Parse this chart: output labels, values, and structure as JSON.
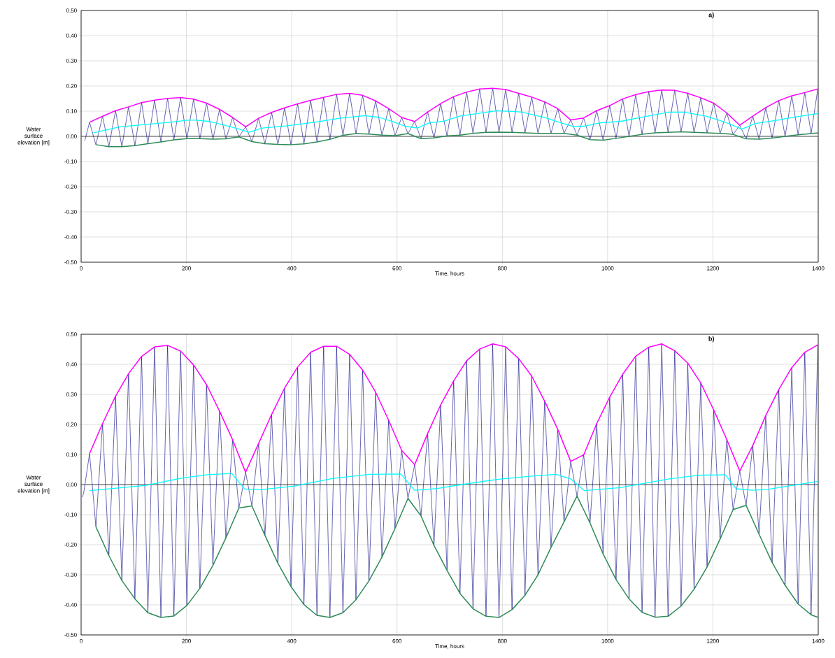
{
  "chart_data": [
    {
      "type": "line",
      "title": "a)",
      "xlabel": "Time, hours",
      "ylabel": "Water surface elevation [m]",
      "xlim": [
        0,
        1400
      ],
      "ylim": [
        -0.5,
        0.5
      ],
      "xticks": [
        0,
        200,
        400,
        600,
        800,
        1000,
        1200,
        1400
      ],
      "yticks": [
        {
          "value": -0.5,
          "label": "-0.50"
        },
        {
          "value": -0.4,
          "label": "-0.40"
        },
        {
          "value": -0.3,
          "label": "-0.30"
        },
        {
          "value": -0.2,
          "label": "-0.20"
        },
        {
          "value": -0.1,
          "label": "-0.10"
        },
        {
          "value": 0,
          "label": "0.00"
        },
        {
          "value": 0.1,
          "label": "0.10"
        },
        {
          "value": 0.2,
          "label": "0.20"
        },
        {
          "value": 0.3,
          "label": "0.30"
        },
        {
          "value": 0.4,
          "label": "0.40"
        },
        {
          "value": 0.5,
          "label": "0.50"
        }
      ],
      "grid": true,
      "marker": "none",
      "ref_lines": [
        {
          "axis": "y",
          "value": 0,
          "color": "#404040"
        }
      ],
      "series": [
        {
          "color": "#000080",
          "x": [
            7,
            16,
            28,
            40.7,
            52.7,
            65.4,
            77.4,
            90.1,
            102.1,
            114.8,
            126.8,
            139.5,
            151.5,
            164.2,
            176.2,
            188.9,
            200.9,
            213.6,
            225.6,
            238.3,
            250.3,
            263,
            275,
            287.7,
            299.7,
            312.4,
            324.4,
            337.1,
            349.1,
            361.8,
            373.8,
            386.5,
            398.5,
            411.2,
            423.2,
            435.9,
            447.9,
            460.6,
            472.6,
            485.3,
            497.3,
            510,
            522,
            534.7,
            546.7,
            559.4,
            571.4,
            584.1,
            596.1,
            608.8,
            620.8,
            633.5,
            645.5,
            658.2,
            670.2,
            682.9,
            694.9,
            707.6,
            719.6,
            732.3,
            744.3,
            757,
            769,
            781.7,
            793.7,
            806.4,
            818.4,
            831.1,
            843.1,
            855.8,
            867.8,
            880.5,
            892.5,
            905.2,
            917.2,
            929.9,
            941.9,
            954.6,
            966.6,
            979.3,
            991.3,
            1004,
            1016,
            1028.7,
            1040.7,
            1053.4,
            1065.4,
            1078.1,
            1090.1,
            1102.8,
            1114.8,
            1127.5,
            1139.5,
            1152.2,
            1164.2,
            1176.9,
            1188.9,
            1201.6,
            1213.6,
            1226.3,
            1238.3,
            1251,
            1263,
            1275.7,
            1287.7,
            1300.4,
            1312.4,
            1325.1,
            1337.1,
            1349.8,
            1361.8,
            1374.5,
            1386.5,
            1399.2
          ],
          "values": [
            -0.017,
            0.056,
            -0.033,
            0.08,
            -0.041,
            0.102,
            -0.041,
            0.117,
            -0.037,
            0.134,
            -0.029,
            0.144,
            -0.022,
            0.151,
            -0.014,
            0.154,
            -0.009,
            0.148,
            -0.009,
            0.132,
            -0.011,
            0.107,
            -0.01,
            0.075,
            -0.002,
            0.038,
            -0.021,
            0.072,
            -0.029,
            0.095,
            -0.032,
            0.113,
            -0.033,
            0.129,
            -0.03,
            0.143,
            -0.022,
            0.155,
            -0.012,
            0.167,
            0.004,
            0.171,
            0.011,
            0.163,
            0.009,
            0.141,
            0.005,
            0.11,
            0.003,
            0.075,
            0.011,
            0.059,
            -0.009,
            0.097,
            -0.006,
            0.13,
            0.002,
            0.158,
            0.005,
            0.176,
            0.012,
            0.188,
            0.016,
            0.191,
            0.017,
            0.186,
            0.016,
            0.171,
            0.014,
            0.156,
            0.012,
            0.137,
            0.012,
            0.11,
            0.012,
            0.065,
            0.005,
            0.073,
            -0.013,
            0.102,
            -0.015,
            0.122,
            -0.008,
            0.149,
            0.0,
            0.166,
            0.008,
            0.178,
            0.014,
            0.184,
            0.016,
            0.183,
            0.018,
            0.171,
            0.016,
            0.153,
            0.014,
            0.132,
            0.012,
            0.093,
            0.008,
            0.044,
            -0.01,
            0.08,
            -0.011,
            0.114,
            -0.007,
            0.142,
            0.0,
            0.161,
            0.006,
            0.174,
            0.011,
            0.188
          ]
        },
        {
          "color": "#ff00ff",
          "x": [
            16,
            40.7,
            65.4,
            90.1,
            114.8,
            139.5,
            164.2,
            188.9,
            213.6,
            238.3,
            263,
            287.7,
            312.4,
            337.1,
            361.8,
            386.5,
            411.2,
            435.9,
            460.6,
            485.3,
            510,
            534.7,
            559.4,
            584.1,
            608.8,
            633.5,
            658.2,
            682.9,
            707.6,
            732.3,
            757,
            781.7,
            806.4,
            831.1,
            855.8,
            880.5,
            905.2,
            929.9,
            954.6,
            979.3,
            1004,
            1028.7,
            1053.4,
            1078.1,
            1102.8,
            1127.5,
            1152.2,
            1176.9,
            1201.6,
            1226.3,
            1251,
            1275.7,
            1300.4,
            1325.1,
            1349.8,
            1374.5,
            1399.2
          ],
          "values": [
            0.056,
            0.08,
            0.102,
            0.117,
            0.134,
            0.144,
            0.151,
            0.154,
            0.148,
            0.132,
            0.107,
            0.075,
            0.038,
            0.072,
            0.095,
            0.113,
            0.129,
            0.143,
            0.155,
            0.167,
            0.171,
            0.163,
            0.141,
            0.11,
            0.075,
            0.059,
            0.097,
            0.13,
            0.158,
            0.176,
            0.188,
            0.191,
            0.186,
            0.171,
            0.156,
            0.137,
            0.11,
            0.065,
            0.073,
            0.102,
            0.122,
            0.149,
            0.166,
            0.178,
            0.184,
            0.183,
            0.171,
            0.153,
            0.132,
            0.093,
            0.044,
            0.08,
            0.114,
            0.142,
            0.161,
            0.174,
            0.188
          ]
        },
        {
          "color": "#00ffff",
          "x": [
            23.8,
            73.6,
            121,
            168.5,
            201.7,
            220.6,
            244.4,
            272.8,
            296.6,
            318.4,
            344,
            391.4,
            443.6,
            491,
            538.5,
            567,
            595.4,
            614.4,
            638,
            661.8,
            690.3,
            718.7,
            742.7,
            789.5,
            836.2,
            883,
            911.2,
            934.6,
            957.9,
            986,
            1023.4,
            1070.2,
            1116.9,
            1145,
            1187,
            1219.8,
            1254.9,
            1280.5,
            1318,
            1360,
            1400
          ],
          "values": [
            0.014,
            0.038,
            0.047,
            0.056,
            0.064,
            0.064,
            0.059,
            0.044,
            0.031,
            0.016,
            0.033,
            0.042,
            0.056,
            0.072,
            0.082,
            0.075,
            0.056,
            0.041,
            0.033,
            0.054,
            0.061,
            0.08,
            0.088,
            0.102,
            0.097,
            0.073,
            0.054,
            0.039,
            0.041,
            0.054,
            0.059,
            0.078,
            0.096,
            0.096,
            0.08,
            0.059,
            0.029,
            0.051,
            0.063,
            0.078,
            0.091
          ]
        },
        {
          "color": "#2e8b57",
          "x": [
            28,
            52.7,
            77.4,
            102.1,
            126.8,
            151.5,
            176.2,
            200.9,
            225.6,
            250.3,
            275,
            299.7,
            324.4,
            349.1,
            373.8,
            398.5,
            423.2,
            447.9,
            472.6,
            497.3,
            522,
            546.7,
            571.4,
            596.1,
            620.8,
            645.5,
            670.2,
            694.9,
            719.6,
            744.3,
            769,
            793.7,
            818.4,
            843.1,
            867.8,
            892.5,
            917.2,
            941.9,
            966.6,
            991.3,
            1016,
            1040.7,
            1065.4,
            1090.1,
            1114.8,
            1139.5,
            1164.2,
            1188.9,
            1213.6,
            1238.3,
            1263,
            1287.7,
            1312.4,
            1337.1,
            1361.8,
            1386.5,
            1400
          ],
          "values": [
            -0.033,
            -0.041,
            -0.041,
            -0.037,
            -0.029,
            -0.022,
            -0.014,
            -0.009,
            -0.009,
            -0.011,
            -0.01,
            -0.002,
            -0.021,
            -0.029,
            -0.032,
            -0.033,
            -0.03,
            -0.022,
            -0.012,
            0.004,
            0.011,
            0.009,
            0.005,
            0.003,
            0.011,
            -0.009,
            -0.006,
            0.002,
            0.005,
            0.012,
            0.016,
            0.017,
            0.016,
            0.014,
            0.012,
            0.012,
            0.012,
            0.005,
            -0.013,
            -0.015,
            -0.008,
            0.0,
            0.008,
            0.014,
            0.016,
            0.018,
            0.016,
            0.014,
            0.012,
            0.008,
            -0.01,
            -0.011,
            -0.007,
            0.0,
            0.006,
            0.011,
            0.014
          ]
        }
      ]
    },
    {
      "type": "line",
      "title": "b)",
      "xlabel": "Time, hours",
      "ylabel": "Water surface elevation [m]",
      "xlim": [
        0,
        1400
      ],
      "ylim": [
        -0.5,
        0.5
      ],
      "xticks": [
        0,
        200,
        400,
        600,
        800,
        1000,
        1200,
        1400
      ],
      "yticks": [
        {
          "value": -0.5,
          "label": "-0.50"
        },
        {
          "value": -0.4,
          "label": "-0.40"
        },
        {
          "value": -0.3,
          "label": "-0.30"
        },
        {
          "value": -0.2,
          "label": "-0.20"
        },
        {
          "value": -0.1,
          "label": "-0.10"
        },
        {
          "value": 0,
          "label": "0.00"
        },
        {
          "value": 0.1,
          "label": "0.10"
        },
        {
          "value": 0.2,
          "label": "0.20"
        },
        {
          "value": 0.3,
          "label": "0.30"
        },
        {
          "value": 0.4,
          "label": "0.40"
        },
        {
          "value": 0.5,
          "label": "0.50"
        }
      ],
      "grid": true,
      "marker": "none",
      "ref_lines": [
        {
          "axis": "y",
          "value": 0,
          "color": "#404040"
        }
      ],
      "series": [
        {
          "color": "#000080",
          "x": [
            2.5,
            5,
            16,
            28,
            40.7,
            52.7,
            65.4,
            77.4,
            90.1,
            102.1,
            114.8,
            126.8,
            139.5,
            151.5,
            164.2,
            176.2,
            188.9,
            200.9,
            213.6,
            225.6,
            238.3,
            250.3,
            263,
            275,
            287.7,
            299.7,
            312.4,
            324.4,
            337.1,
            349.1,
            361.8,
            373.8,
            386.5,
            398.5,
            411.2,
            423.2,
            435.9,
            447.9,
            460.6,
            472.6,
            485.3,
            497.3,
            510,
            522,
            534.7,
            546.7,
            559.4,
            571.4,
            584.1,
            596.1,
            608.8,
            620.8,
            633.5,
            645.5,
            658.2,
            670.2,
            682.9,
            694.9,
            707.6,
            719.6,
            732.3,
            744.3,
            757,
            769,
            781.7,
            793.7,
            806.4,
            818.4,
            831.1,
            843.1,
            855.8,
            867.8,
            880.5,
            892.5,
            905.2,
            917.2,
            929.9,
            941.9,
            954.6,
            966.6,
            979.3,
            991.3,
            1004,
            1016,
            1028.7,
            1040.7,
            1053.4,
            1065.4,
            1078.1,
            1090.1,
            1102.8,
            1114.8,
            1127.5,
            1139.5,
            1152.2,
            1164.2,
            1176.9,
            1188.9,
            1201.6,
            1213.6,
            1226.3,
            1238.3,
            1251,
            1263,
            1275.7,
            1287.7,
            1300.4,
            1312.4,
            1325.1,
            1337.1,
            1349.8,
            1361.8,
            1374.5,
            1386.5,
            1399.2
          ],
          "values": [
            -0.042,
            -0.026,
            0.103,
            -0.14,
            0.203,
            -0.236,
            0.294,
            -0.319,
            0.369,
            -0.38,
            0.426,
            -0.426,
            0.458,
            -0.442,
            0.463,
            -0.437,
            0.444,
            -0.402,
            0.398,
            -0.345,
            0.332,
            -0.269,
            0.244,
            -0.177,
            0.149,
            -0.078,
            0.041,
            -0.071,
            0.137,
            -0.169,
            0.233,
            -0.262,
            0.321,
            -0.339,
            0.391,
            -0.399,
            0.44,
            -0.435,
            0.46,
            -0.442,
            0.46,
            -0.426,
            0.433,
            -0.383,
            0.381,
            -0.32,
            0.307,
            -0.241,
            0.214,
            -0.146,
            0.114,
            -0.046,
            0.066,
            -0.104,
            0.17,
            -0.202,
            0.265,
            -0.285,
            0.345,
            -0.362,
            0.412,
            -0.413,
            0.451,
            -0.438,
            0.468,
            -0.442,
            0.458,
            -0.416,
            0.419,
            -0.368,
            0.361,
            -0.3,
            0.277,
            -0.209,
            0.184,
            -0.124,
            0.077,
            -0.038,
            0.099,
            -0.128,
            0.203,
            -0.23,
            0.291,
            -0.316,
            0.367,
            -0.38,
            0.427,
            -0.425,
            0.457,
            -0.441,
            0.468,
            -0.438,
            0.445,
            -0.404,
            0.404,
            -0.348,
            0.338,
            -0.274,
            0.248,
            -0.181,
            0.15,
            -0.083,
            0.045,
            -0.069,
            0.13,
            -0.165,
            0.23,
            -0.259,
            0.316,
            -0.335,
            0.389,
            -0.397,
            0.44,
            -0.433,
            0.465
          ]
        },
        {
          "color": "#ff00ff",
          "x": [
            16,
            40.7,
            65.4,
            90.1,
            114.8,
            139.5,
            164.2,
            188.9,
            213.6,
            238.3,
            263,
            287.7,
            312.4,
            337.1,
            361.8,
            386.5,
            411.2,
            435.9,
            460.6,
            485.3,
            510,
            534.7,
            559.4,
            584.1,
            608.8,
            633.5,
            658.2,
            682.9,
            707.6,
            732.3,
            757,
            781.7,
            806.4,
            831.1,
            855.8,
            880.5,
            905.2,
            929.9,
            954.6,
            979.3,
            1004,
            1028.7,
            1053.4,
            1078.1,
            1102.8,
            1127.5,
            1152.2,
            1176.9,
            1201.6,
            1226.3,
            1251,
            1275.7,
            1300.4,
            1325.1,
            1349.8,
            1374.5,
            1399.2
          ],
          "values": [
            0.103,
            0.203,
            0.294,
            0.369,
            0.426,
            0.458,
            0.463,
            0.444,
            0.398,
            0.332,
            0.244,
            0.149,
            0.041,
            0.137,
            0.233,
            0.321,
            0.391,
            0.44,
            0.46,
            0.46,
            0.433,
            0.381,
            0.307,
            0.214,
            0.114,
            0.066,
            0.17,
            0.265,
            0.345,
            0.412,
            0.451,
            0.468,
            0.458,
            0.419,
            0.361,
            0.277,
            0.184,
            0.077,
            0.099,
            0.203,
            0.291,
            0.367,
            0.427,
            0.457,
            0.468,
            0.445,
            0.404,
            0.338,
            0.248,
            0.15,
            0.045,
            0.13,
            0.23,
            0.316,
            0.389,
            0.44,
            0.465
          ]
        },
        {
          "color": "#00ffff",
          "x": [
            15.8,
            121,
            192.2,
            239.6,
            286.1,
            310.8,
            339.2,
            405.6,
            476.8,
            548,
            607.3,
            633.4,
            676,
            722.5,
            789.5,
            859.7,
            901.7,
            929.8,
            955.6,
            1023.4,
            1116.9,
            1173.1,
            1223.6,
            1244.2,
            1275.9,
            1304,
            1400
          ],
          "values": [
            -0.02,
            -0.003,
            0.022,
            0.033,
            0.037,
            -0.015,
            -0.017,
            -0.005,
            0.02,
            0.034,
            0.035,
            -0.019,
            -0.013,
            0.0,
            0.017,
            0.029,
            0.034,
            0.019,
            -0.02,
            -0.01,
            0.019,
            0.031,
            0.033,
            -0.014,
            -0.019,
            -0.016,
            0.011
          ]
        },
        {
          "color": "#2e8b57",
          "x": [
            28,
            52.7,
            77.4,
            102.1,
            126.8,
            151.5,
            176.2,
            200.9,
            225.6,
            250.3,
            275,
            299.7,
            324.4,
            349.1,
            373.8,
            398.5,
            423.2,
            447.9,
            472.6,
            497.3,
            522,
            546.7,
            571.4,
            596.1,
            620.8,
            645.5,
            670.2,
            694.9,
            719.6,
            744.3,
            769,
            793.7,
            818.4,
            843.1,
            867.8,
            892.5,
            917.2,
            941.9,
            966.6,
            991.3,
            1016,
            1040.7,
            1065.4,
            1090.1,
            1114.8,
            1139.5,
            1164.2,
            1188.9,
            1213.6,
            1238.3,
            1263,
            1287.7,
            1312.4,
            1337.1,
            1361.8,
            1386.5,
            1400
          ],
          "values": [
            -0.14,
            -0.236,
            -0.319,
            -0.38,
            -0.426,
            -0.442,
            -0.437,
            -0.402,
            -0.345,
            -0.269,
            -0.177,
            -0.078,
            -0.071,
            -0.169,
            -0.262,
            -0.339,
            -0.399,
            -0.435,
            -0.442,
            -0.426,
            -0.383,
            -0.32,
            -0.241,
            -0.146,
            -0.046,
            -0.104,
            -0.202,
            -0.285,
            -0.362,
            -0.413,
            -0.438,
            -0.442,
            -0.416,
            -0.368,
            -0.3,
            -0.209,
            -0.124,
            -0.038,
            -0.128,
            -0.23,
            -0.316,
            -0.38,
            -0.425,
            -0.441,
            -0.438,
            -0.404,
            -0.348,
            -0.274,
            -0.181,
            -0.083,
            -0.069,
            -0.165,
            -0.259,
            -0.335,
            -0.397,
            -0.433,
            -0.442
          ]
        }
      ]
    }
  ]
}
